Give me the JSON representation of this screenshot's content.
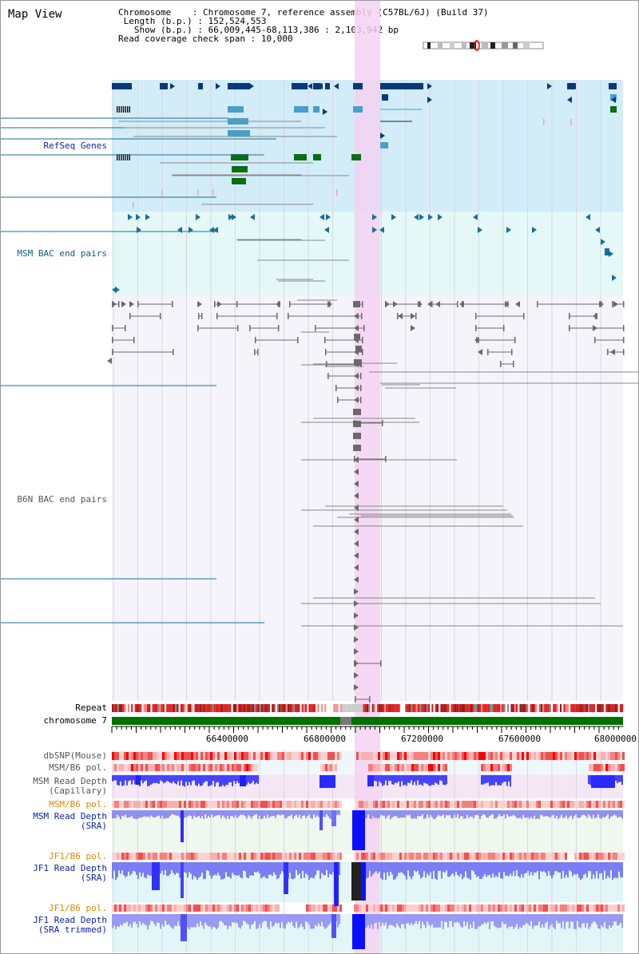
{
  "header": {
    "title": "Map View",
    "chromosome_label": "Chromosome",
    "chromosome_value": "Chromosome 7, reference assembly (C57BL/6J) (Build 37)",
    "length_label": "Length (b.p.)",
    "length_value": "152,524,553",
    "show_label": "Show (b.p.)",
    "show_value": "66,009,445-68,113,386 : 2,103,942 bp",
    "coverage_label": "Read coverage check span",
    "coverage_value": "10,000"
  },
  "tracks": {
    "refseq": "RefSeq Genes",
    "msm_bac": "MSM BAC end pairs",
    "b6n_bac": "B6N BAC end pairs",
    "repeat": "Repeat",
    "chromosome": "chromosome 7",
    "dbsnp": "dbSNP(Mouse)",
    "msm_pol1": "MSM/B6 pol.",
    "msm_depth_cap": "MSM Read Depth\n(Capillary)",
    "msm_pol2": "MSM/B6 pol.",
    "msm_depth_sra": "MSM Read Depth\n(SRA)",
    "jf1_pol1": "JF1/B6 pol.",
    "jf1_depth_sra": "JF1 Read Depth\n(SRA)",
    "jf1_pol2": "JF1/B6 pol.",
    "jf1_depth_trim": "JF1 Read Depth\n(SRA trimmed)"
  },
  "axis": {
    "ticks": [
      "66400000",
      "66800000",
      "67200000",
      "67600000",
      "68000000"
    ]
  },
  "colors": {
    "highlight": "#f5d2f2",
    "refseq_bg": "#d2ecf8",
    "msm_bg": "#e4f8f8",
    "b6n_bg": "#f4f4fa",
    "gene_dark": "#0a3a75",
    "gene_mid": "#4a9fc8",
    "gene_green": "#0a6e14",
    "bac_teal": "#1a6e95",
    "bac_gray": "#888888",
    "chrom_green": "#007000",
    "depth_blue": "#3030ff",
    "pol_red": "#ff2020"
  }
}
